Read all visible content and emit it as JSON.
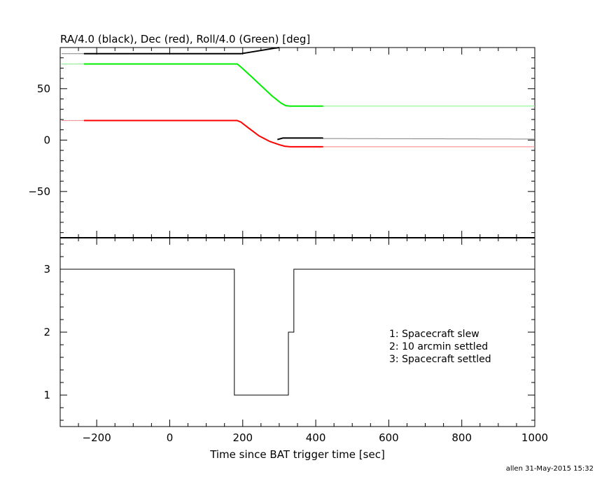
{
  "footer": {
    "credit": "allen 31-May-2015 15:32"
  },
  "chart_data": [
    {
      "type": "line",
      "title": "RA/4.0 (black), Dec (red), Roll/4.0 (Green) [deg]",
      "xlabel": "",
      "ylabel": "",
      "xlim": [
        -300,
        1000
      ],
      "ylim": [
        -95,
        90
      ],
      "xticks": [
        -200,
        0,
        200,
        400,
        600,
        800,
        1000
      ],
      "yticks": [
        -50,
        0,
        50
      ],
      "yticklabels": [
        "−50",
        "0",
        "50"
      ],
      "grid": false,
      "series": [
        {
          "color": "#000000",
          "segments": [
            {
              "style": "dotted",
              "x": [
                -295,
                -235
              ],
              "y": [
                84,
                84
              ]
            },
            {
              "style": "solid",
              "x": [
                -235,
                195,
                290,
                300
              ],
              "y": [
                84,
                84,
                89.5,
                90
              ]
            },
            {
              "style": "solid",
              "x": [
                295,
                310,
                420
              ],
              "y": [
                0.5,
                2,
                2
              ]
            },
            {
              "style": "dotted",
              "x": [
                420,
                1000
              ],
              "y": [
                1.5,
                1
              ]
            }
          ]
        },
        {
          "color": "#ff0000",
          "segments": [
            {
              "style": "dotted",
              "x": [
                -295,
                -235
              ],
              "y": [
                19,
                19
              ]
            },
            {
              "style": "solid",
              "x": [
                -235,
                185,
                195,
                215,
                245,
                275,
                300,
                315,
                330,
                420
              ],
              "y": [
                19,
                19,
                17.5,
                12,
                4,
                -1.5,
                -4.5,
                -6,
                -6.5,
                -6.5
              ]
            },
            {
              "style": "dotted",
              "x": [
                420,
                1000
              ],
              "y": [
                -6.5,
                -6.5
              ]
            }
          ]
        },
        {
          "color": "#00ee00",
          "segments": [
            {
              "style": "dotted",
              "x": [
                -295,
                -235
              ],
              "y": [
                74,
                74
              ]
            },
            {
              "style": "solid",
              "x": [
                -235,
                185,
                195,
                220,
                250,
                280,
                305,
                318,
                330,
                420
              ],
              "y": [
                74,
                74,
                71,
                63,
                53,
                43,
                36,
                33.5,
                33,
                33
              ]
            },
            {
              "style": "dotted",
              "x": [
                420,
                1000
              ],
              "y": [
                33,
                33
              ]
            }
          ]
        }
      ]
    },
    {
      "type": "line",
      "title": "",
      "xlabel": "Time since BAT trigger time [sec]",
      "ylabel": "",
      "xlim": [
        -300,
        1000
      ],
      "ylim": [
        0.5,
        3.5
      ],
      "xticks": [
        -200,
        0,
        200,
        400,
        600,
        800,
        1000
      ],
      "yticks": [
        1,
        2,
        3
      ],
      "grid": false,
      "step": true,
      "series": [
        {
          "color": "#000000",
          "x": [
            -300,
            177,
            177,
            325,
            325,
            340,
            340,
            1000
          ],
          "y": [
            3,
            3,
            1,
            1,
            2,
            2,
            3,
            3
          ]
        }
      ],
      "legend_lines": [
        "1: Spacecraft slew",
        "2: 10 arcmin settled",
        "3: Spacecraft settled"
      ]
    }
  ]
}
